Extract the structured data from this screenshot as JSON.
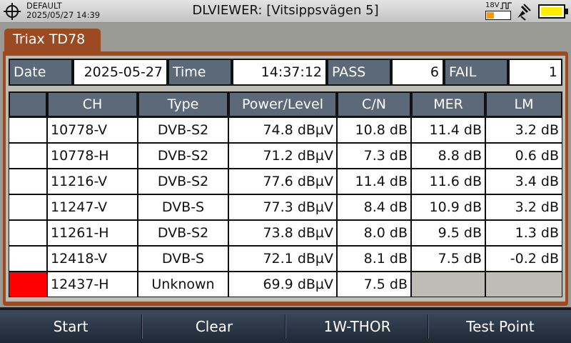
{
  "status_bar": {
    "profile_name": "DEFAULT",
    "datetime": "2025/05/27 14:39",
    "title": "DLVIEWER: [Vitsippsvägen 5]",
    "lnb_voltage": "18V",
    "lnb_voltage_level": 0.3,
    "battery_level": 1.0,
    "battery_color": "#ffee00",
    "icons": [
      "crosshair-icon",
      "pulse-icon",
      "satellite-icon",
      "battery-icon"
    ]
  },
  "tab": {
    "label": "Triax TD78"
  },
  "summary": {
    "date_label": "Date",
    "date_value": "2025-05-27",
    "time_label": "Time",
    "time_value": "14:37:12",
    "pass_label": "PASS",
    "pass_value": "6",
    "fail_label": "FAIL",
    "fail_value": "1"
  },
  "table": {
    "headers": [
      "",
      "CH",
      "Type",
      "Power/Level",
      "C/N",
      "MER",
      "LM"
    ],
    "rows": [
      {
        "status": "",
        "ch": "10778-V",
        "type": "DVB-S2",
        "power": "74.8 dBµV",
        "cn": "10.8 dB",
        "mer": "11.4 dB",
        "lm": "3.2 dB"
      },
      {
        "status": "",
        "ch": "10778-H",
        "type": "DVB-S2",
        "power": "71.2 dBµV",
        "cn": "7.3 dB",
        "mer": "8.8 dB",
        "lm": "0.6 dB"
      },
      {
        "status": "",
        "ch": "11216-V",
        "type": "DVB-S2",
        "power": "77.6 dBµV",
        "cn": "11.4 dB",
        "mer": "11.6 dB",
        "lm": "3.4 dB"
      },
      {
        "status": "",
        "ch": "11247-V",
        "type": "DVB-S",
        "power": "77.3 dBµV",
        "cn": "8.4 dB",
        "mer": "10.9 dB",
        "lm": "3.2 dB"
      },
      {
        "status": "",
        "ch": "11261-H",
        "type": "DVB-S2",
        "power": "73.8 dBµV",
        "cn": "8.0 dB",
        "mer": "9.5 dB",
        "lm": "1.3 dB"
      },
      {
        "status": "",
        "ch": "12418-V",
        "type": "DVB-S",
        "power": "72.1 dBµV",
        "cn": "8.1 dB",
        "mer": "7.5 dB",
        "lm": "-0.2 dB"
      },
      {
        "status": "fail",
        "ch": "12437-H",
        "type": "Unknown",
        "power": "69.9 dBµV",
        "cn": "7.5 dB",
        "mer": "",
        "lm": ""
      }
    ],
    "status_colors": {
      "fail": "#ff0000",
      "pass": "#ffffff"
    }
  },
  "softkeys": [
    "Start",
    "Clear",
    "1W-THOR",
    "Test Point"
  ],
  "colors": {
    "accent": "#9b4a22",
    "header_bg": "#5c6979",
    "softkey_bg": "#2d3848"
  }
}
